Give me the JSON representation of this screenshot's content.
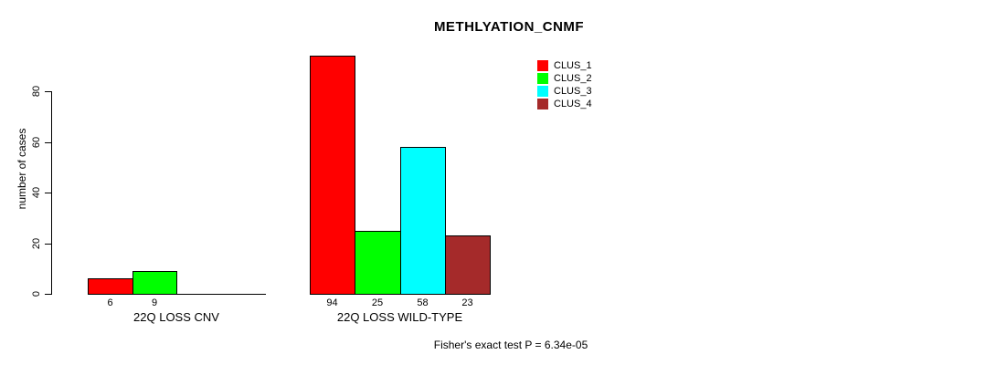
{
  "chart_data": {
    "type": "bar",
    "title": "METHLYATION_CNMF",
    "ylabel": "number of cases",
    "xlabel": "",
    "yticks": [
      0,
      20,
      40,
      60,
      80
    ],
    "ylim": [
      0,
      94
    ],
    "grid": false,
    "legend_position": "top-right",
    "legend": [
      {
        "label": "CLUS_1",
        "color": "#FF0000"
      },
      {
        "label": "CLUS_2",
        "color": "#00FF00"
      },
      {
        "label": "CLUS_3",
        "color": "#00FFFF"
      },
      {
        "label": "CLUS_4",
        "color": "#A52A2A"
      }
    ],
    "series_colors": [
      "#FF0000",
      "#00FF00",
      "#00FFFF",
      "#A52A2A"
    ],
    "groups": [
      {
        "label": "22Q LOSS CNV",
        "values": [
          6,
          9,
          0,
          0
        ],
        "bar_labels": [
          "6",
          "9",
          "",
          ""
        ]
      },
      {
        "label": "22Q LOSS WILD-TYPE",
        "values": [
          94,
          25,
          58,
          23
        ],
        "bar_labels": [
          "94",
          "25",
          "58",
          "23"
        ]
      }
    ],
    "footnote": "Fisher's exact test P = 6.34e-05"
  }
}
